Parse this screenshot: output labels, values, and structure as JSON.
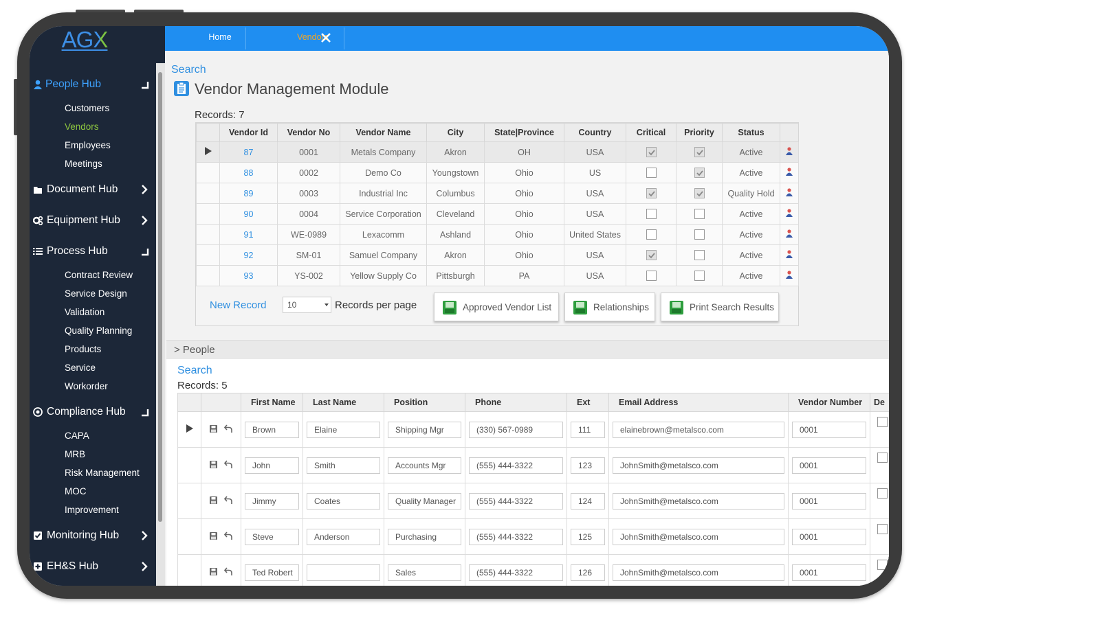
{
  "logo": "AGX",
  "tabs": [
    "Home",
    "Vendors"
  ],
  "active_tab": 1,
  "nav": [
    {
      "label": "People Hub",
      "expanded": true,
      "active": true,
      "items": [
        "Customers",
        "Vendors",
        "Employees",
        "Meetings"
      ],
      "active_item": 1
    },
    {
      "label": "Document Hub",
      "expanded": false
    },
    {
      "label": "Equipment Hub",
      "expanded": false
    },
    {
      "label": "Process Hub",
      "expanded": true,
      "items": [
        "Contract Review",
        "Service Design",
        "Validation",
        "Quality Planning",
        "Products",
        "Service",
        "Workorder"
      ]
    },
    {
      "label": "Compliance Hub",
      "expanded": true,
      "items": [
        "CAPA",
        "MRB",
        "Risk Management",
        "MOC",
        "Improvement"
      ]
    },
    {
      "label": "Monitoring Hub",
      "expanded": false
    },
    {
      "label": "EH&S Hub",
      "expanded": false
    }
  ],
  "vendors": {
    "search": "Search",
    "title": "Vendor Management Module",
    "records_label": "Records:",
    "records": 7,
    "columns": [
      "Vendor Id",
      "Vendor No",
      "Vendor Name",
      "City",
      "State|Province",
      "Country",
      "Critical",
      "Priority",
      "Status"
    ],
    "selected_row": 0,
    "rows": [
      {
        "cells": [
          "87",
          "0001",
          "Metals Company",
          "Akron",
          "OH",
          "USA"
        ],
        "critical": true,
        "priority": true,
        "status": "Active"
      },
      {
        "cells": [
          "88",
          "0002",
          "Demo Co",
          "Youngstown",
          "Ohio",
          "US"
        ],
        "critical": false,
        "priority": true,
        "status": "Active"
      },
      {
        "cells": [
          "89",
          "0003",
          "Industrial Inc",
          "Columbus",
          "Ohio",
          "USA"
        ],
        "critical": true,
        "priority": true,
        "status": "Quality Hold"
      },
      {
        "cells": [
          "90",
          "0004",
          "Service Corporation",
          "Cleveland",
          "Ohio",
          "USA"
        ],
        "critical": false,
        "priority": false,
        "status": "Active"
      },
      {
        "cells": [
          "91",
          "WE-0989",
          "Lexacomm",
          "Ashland",
          "Ohio",
          "United States"
        ],
        "critical": false,
        "priority": false,
        "status": "Active"
      },
      {
        "cells": [
          "92",
          "SM-01",
          "Samuel Company",
          "Akron",
          "Ohio",
          "USA"
        ],
        "critical": true,
        "priority": false,
        "status": "Active"
      },
      {
        "cells": [
          "93",
          "YS-002",
          "Yellow Supply Co",
          "Pittsburgh",
          "PA",
          "USA"
        ],
        "critical": false,
        "priority": false,
        "status": "Active"
      }
    ],
    "new_record": "New Record",
    "per_page": 10,
    "per_page_label": "Records per page",
    "buttons": [
      "Approved Vendor List",
      "Relationships",
      "Print Search Results"
    ]
  },
  "people": {
    "section": "> People",
    "search": "Search",
    "records_label": "Records:",
    "records": 5,
    "columns": [
      "First Name",
      "Last Name",
      "Position",
      "Phone",
      "Ext",
      "Email Address",
      "Vendor Number",
      "De"
    ],
    "selected_row": 0,
    "rows": [
      [
        "Brown",
        "Elaine",
        "Shipping Mgr",
        "(330) 567-0989",
        "111",
        "elainebrown@metalsco.com",
        "0001"
      ],
      [
        "John",
        "Smith",
        "Accounts Mgr",
        "(555) 444-3322",
        "123",
        "JohnSmith@metalsco.com",
        "0001"
      ],
      [
        "Jimmy",
        "Coates",
        "Quality Manager",
        "(555) 444-3322",
        "124",
        "JohnSmith@metalsco.com",
        "0001"
      ],
      [
        "Steve",
        "Anderson",
        "Purchasing",
        "(555) 444-3322",
        "125",
        "JohnSmith@metalsco.com",
        "0001"
      ],
      [
        "Ted Robert",
        null,
        "Sales",
        "(555) 444-3322",
        "126",
        "JohnSmith@metalsco.com",
        "0001"
      ]
    ]
  }
}
